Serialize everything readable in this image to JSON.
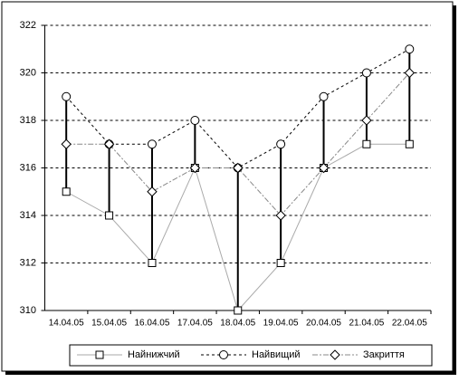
{
  "chart_data": {
    "type": "hlc",
    "categories": [
      "14.04.05",
      "15.04.05",
      "16.04.05",
      "17.04.05",
      "18.04.05",
      "19.04.05",
      "20.04.05",
      "21.04.05",
      "22.04.05"
    ],
    "series": [
      {
        "name": "Найнижчий",
        "color": "#aaaaaa",
        "marker": "square",
        "values": [
          315,
          314,
          312,
          316,
          310,
          312,
          316,
          317,
          317
        ]
      },
      {
        "name": "Найвищий",
        "color": "#000000",
        "marker": "circle",
        "values": [
          319,
          317,
          317,
          318,
          316,
          317,
          319,
          320,
          321
        ]
      },
      {
        "name": "Закриття",
        "color": "#888888",
        "marker": "diamond",
        "values": [
          317,
          317,
          315,
          316,
          316,
          314,
          316,
          318,
          320
        ]
      }
    ],
    "ylim": [
      310,
      322
    ],
    "yticks": [
      310,
      312,
      314,
      316,
      318,
      320,
      322
    ],
    "grid": true,
    "legend": "bottom"
  }
}
